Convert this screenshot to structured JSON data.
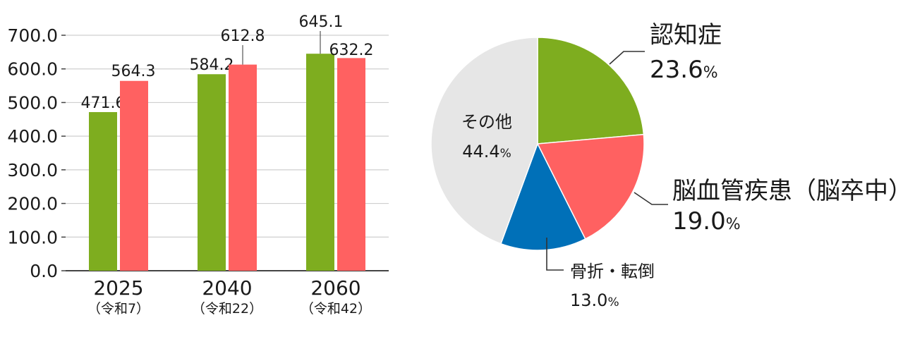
{
  "chart_data": [
    {
      "type": "bar",
      "categories": [
        "2025",
        "2040",
        "2060"
      ],
      "category_sublabels": [
        "（令和7）",
        "（令和22）",
        "（令和42）"
      ],
      "series": [
        {
          "values": [
            471.6,
            584.2,
            645.1
          ],
          "color": "#7ead1f"
        },
        {
          "values": [
            564.3,
            612.8,
            632.2
          ],
          "color": "#ff6161"
        }
      ],
      "value_labels": [
        [
          "471.6",
          "584.2",
          "645.1"
        ],
        [
          "564.3",
          "612.8",
          "632.2"
        ]
      ],
      "ylim": [
        0,
        700
      ],
      "yticks": [
        0,
        100,
        200,
        300,
        400,
        500,
        600,
        700
      ],
      "ytick_labels": [
        "0.0",
        "100.0",
        "200.0",
        "300.0",
        "400.0",
        "500.0",
        "600.0",
        "700.0"
      ],
      "grid": true
    },
    {
      "type": "pie",
      "slices": [
        {
          "label": "認知症",
          "value": 23.6,
          "value_text": "23.6",
          "color": "#7ead1f"
        },
        {
          "label": "脳血管疾患（脳卒中）",
          "value": 19.0,
          "value_text": "19.0",
          "color": "#ff6161"
        },
        {
          "label": "骨折・転倒",
          "value": 13.0,
          "value_text": "13.0",
          "color": "#0070b8"
        },
        {
          "label": "その他",
          "value": 44.4,
          "value_text": "44.4",
          "color": "#e6e6e6"
        }
      ],
      "unit": "%"
    }
  ]
}
